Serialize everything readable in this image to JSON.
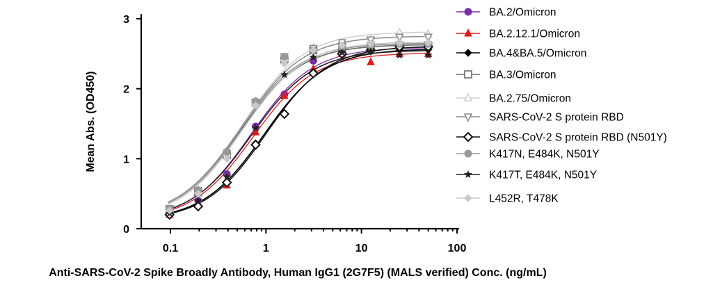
{
  "chart_data": {
    "type": "line",
    "xlabel": "Anti-SARS-CoV-2 Spike Broadly Antibody, Human IgG1 (2G7F5) (MALS verified) Conc. (ng/mL)",
    "ylabel": "Mean Abs. (OD450)",
    "xscale": "log",
    "xlim": [
      0.05,
      100
    ],
    "ylim": [
      0,
      3
    ],
    "x_ticks": [
      0.1,
      1,
      10,
      100
    ],
    "x_tick_labels": [
      "0.1",
      "1",
      "10",
      "100"
    ],
    "y_ticks": [
      0,
      1,
      2,
      3
    ],
    "y_tick_labels": [
      "0",
      "1",
      "2",
      "3"
    ],
    "grid": false,
    "legend_position": "right",
    "x": [
      0.098,
      0.195,
      0.39,
      0.78,
      1.56,
      3.13,
      6.25,
      12.5,
      25,
      50
    ],
    "series": [
      {
        "name": "BA.2/Omicron",
        "color": "#7b2fa8",
        "marker": "circle-filled",
        "values": [
          0.2,
          0.4,
          0.78,
          1.46,
          1.92,
          2.4,
          2.52,
          2.58,
          2.58,
          2.58
        ]
      },
      {
        "name": "BA.2.12.1/Omicron",
        "color": "#e31a1c",
        "marker": "triangle-filled",
        "values": [
          0.2,
          0.34,
          0.62,
          1.38,
          1.9,
          2.28,
          2.5,
          2.38,
          2.5,
          2.5
        ]
      },
      {
        "name": "BA.4&BA.5/Omicron",
        "color": "#000000",
        "marker": "diamond-filled",
        "values": [
          0.21,
          0.33,
          0.66,
          1.22,
          1.65,
          2.24,
          2.5,
          2.55,
          2.56,
          2.56
        ]
      },
      {
        "name": "BA.3/Omicron",
        "color": "#6b6b6b",
        "marker": "square-open",
        "values": [
          0.27,
          0.52,
          1.05,
          1.8,
          2.42,
          2.55,
          2.6,
          2.62,
          2.62,
          2.62
        ]
      },
      {
        "name": "BA.2.75/Omicron",
        "color": "#d0d0d0",
        "marker": "triangle-open",
        "values": [
          0.28,
          0.55,
          1.08,
          1.82,
          2.44,
          2.58,
          2.65,
          2.7,
          2.8,
          2.78
        ]
      },
      {
        "name": "SARS-CoV-2 S protein RBD",
        "color": "#8e8e8e",
        "marker": "triangle-down-open",
        "values": [
          0.29,
          0.55,
          1.08,
          1.8,
          2.46,
          2.58,
          2.66,
          2.7,
          2.74,
          2.74
        ]
      },
      {
        "name": "SARS-CoV-2 S protein RBD (N501Y)",
        "color": "#111111",
        "marker": "diamond-open",
        "values": [
          0.2,
          0.32,
          0.66,
          1.2,
          1.64,
          2.22,
          2.5,
          2.55,
          2.6,
          2.6
        ]
      },
      {
        "name": "K417N, E484K, N501Y",
        "color": "#999999",
        "marker": "circle-filled",
        "values": [
          0.28,
          0.55,
          1.1,
          1.82,
          2.46,
          2.55,
          2.6,
          2.62,
          2.64,
          2.64
        ]
      },
      {
        "name": "K417T, E484K, N501Y",
        "color": "#222222",
        "marker": "star",
        "values": [
          0.22,
          0.4,
          0.74,
          1.44,
          2.2,
          2.45,
          2.52,
          2.54,
          2.48,
          2.48
        ]
      },
      {
        "name": "L452R, T478K",
        "color": "#c8c8c8",
        "marker": "diamond-filled",
        "values": [
          0.26,
          0.5,
          1.0,
          1.76,
          2.36,
          2.55,
          2.62,
          2.64,
          2.66,
          2.66
        ]
      }
    ]
  }
}
